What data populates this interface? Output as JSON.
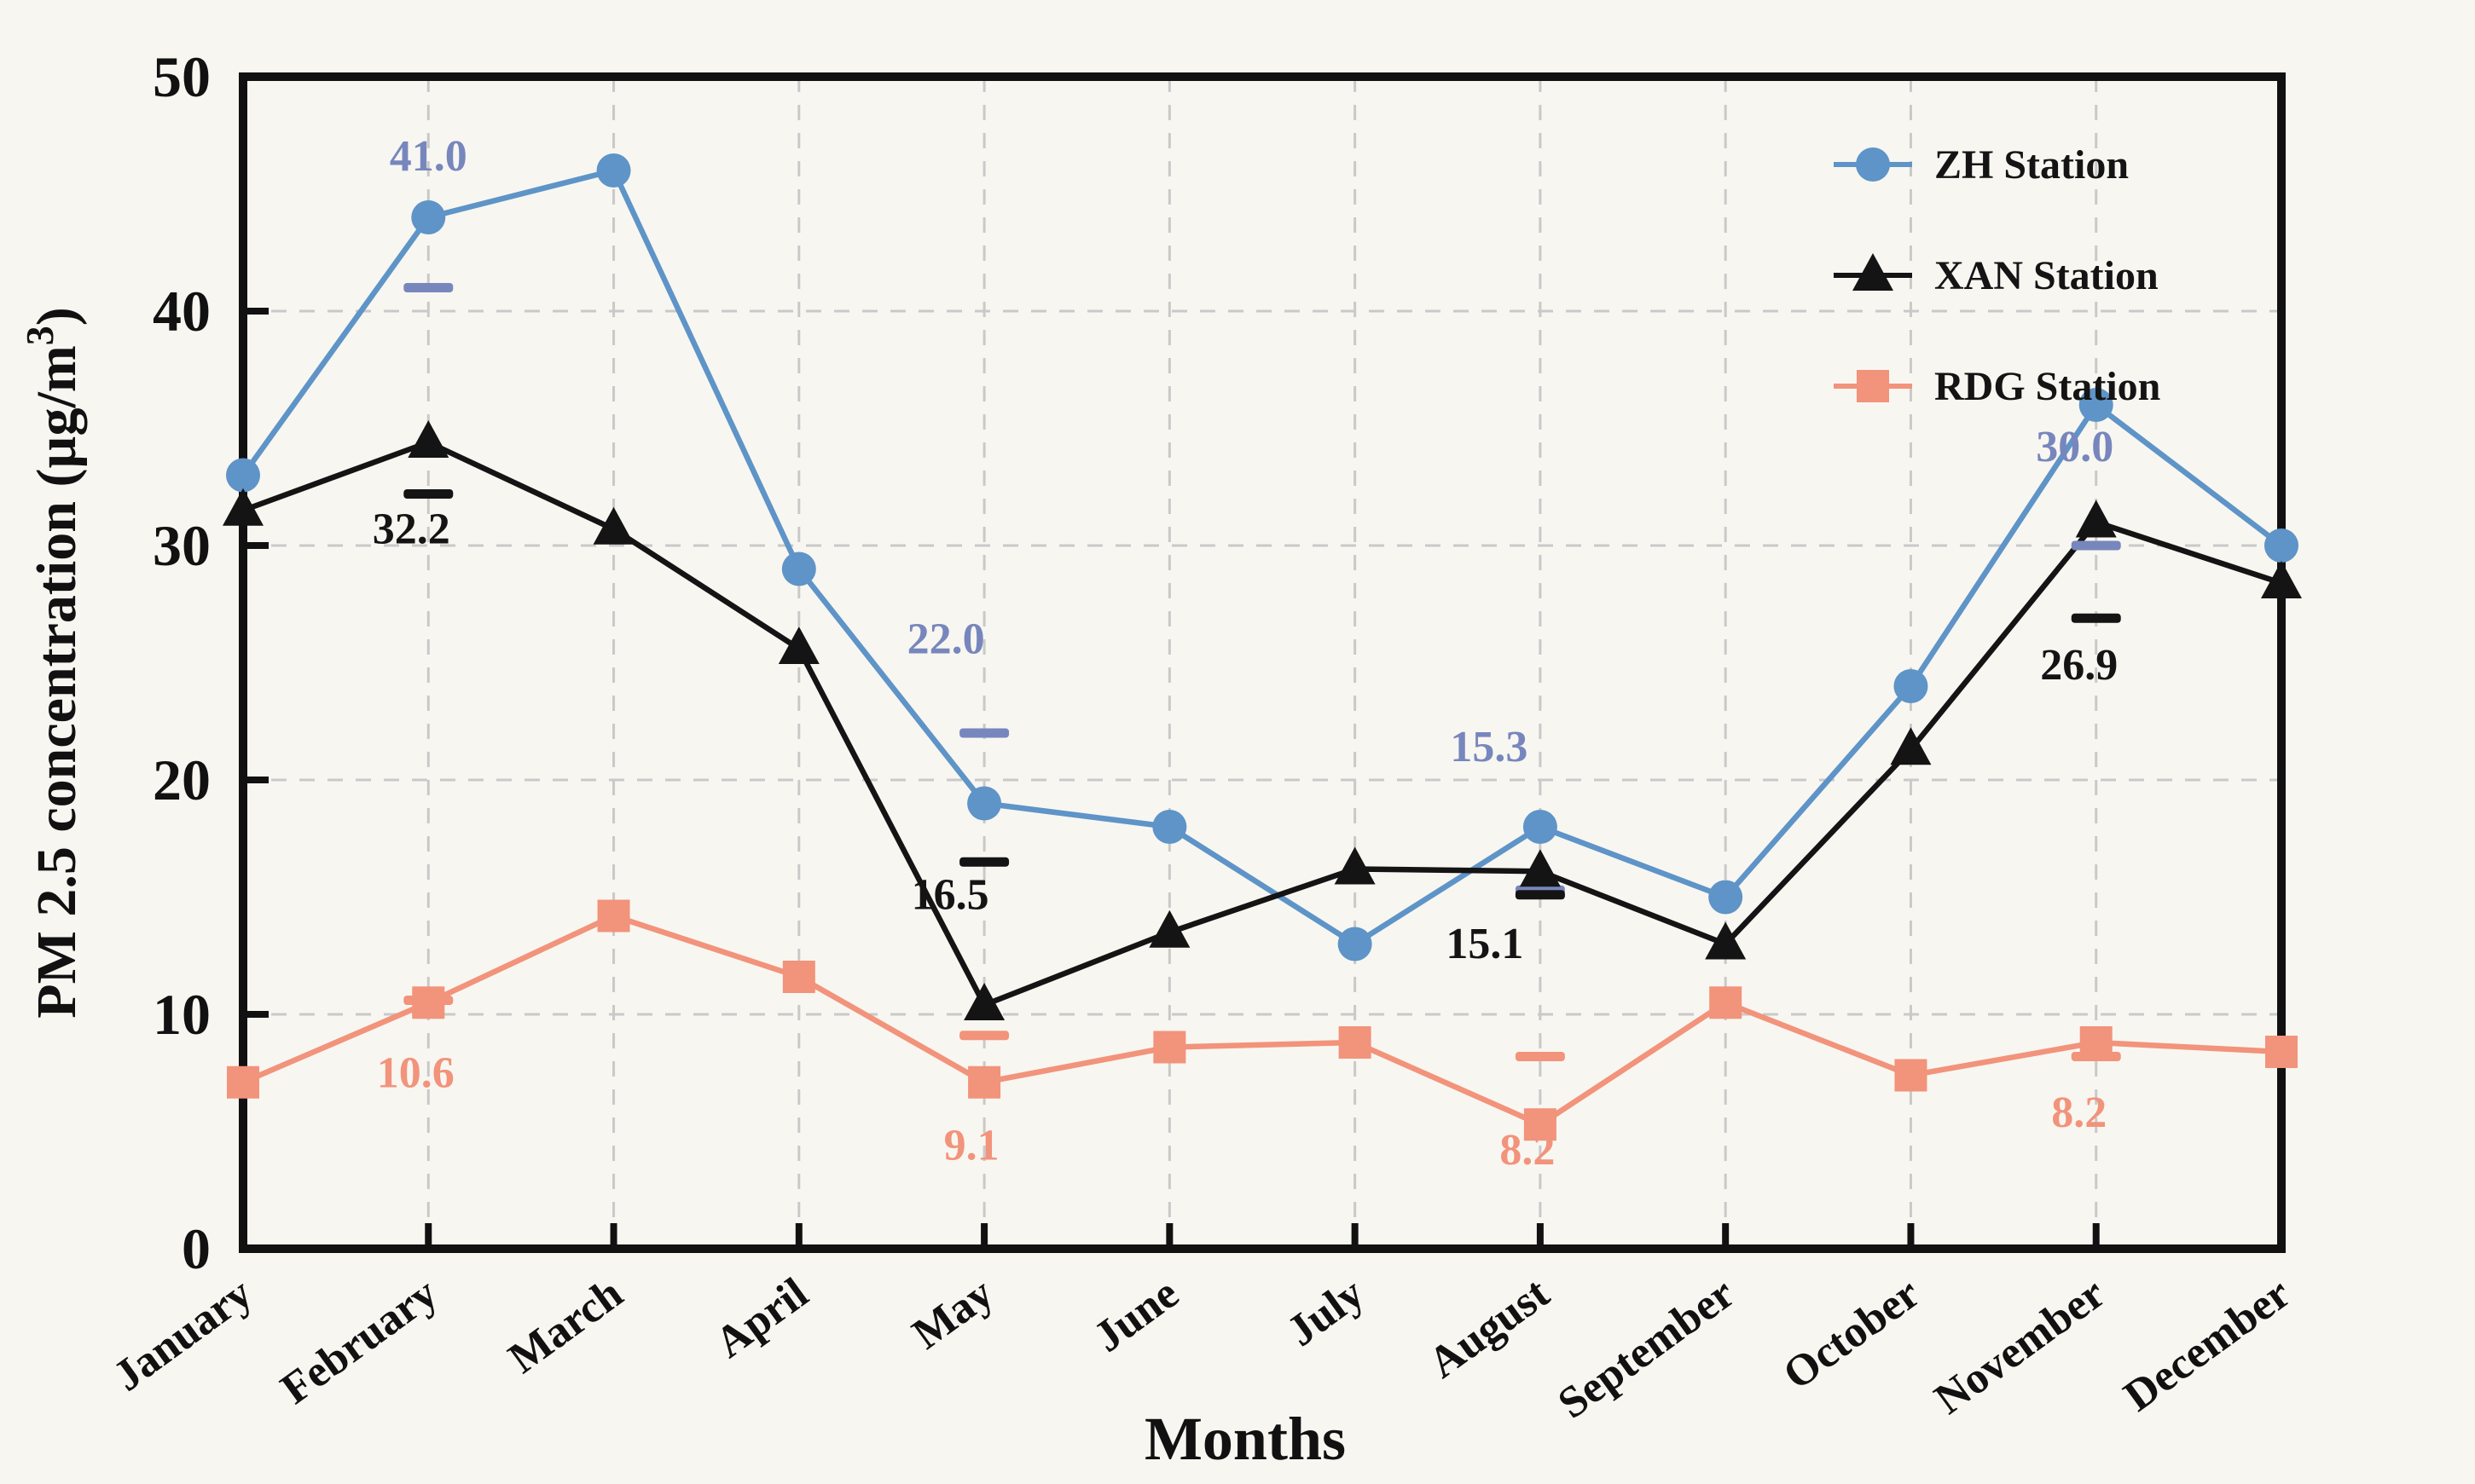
{
  "figure": {
    "background": "#F8F6F1",
    "frame_color": "#111111",
    "grid_color": "#C9C9C9",
    "tick_color": "#111111"
  },
  "titles": {
    "y_axis_prefix": "PM 2.5 concentration (µg/m",
    "y_axis_superscript": "3",
    "y_axis_suffix": ")",
    "x_axis": "Months"
  },
  "legend": {
    "items": [
      {
        "label": "ZH Station",
        "marker": "circle",
        "color": "#5E94C7"
      },
      {
        "label": "XAN Station",
        "marker": "triangle",
        "color": "#141414"
      },
      {
        "label": "RDG Station",
        "marker": "square",
        "color": "#F2937B"
      }
    ]
  },
  "chart_data": {
    "type": "line",
    "categories": [
      "January",
      "February",
      "March",
      "April",
      "May",
      "June",
      "July",
      "August",
      "September",
      "October",
      "November",
      "December"
    ],
    "y_ticks": [
      "0",
      "10",
      "20",
      "30",
      "40",
      "50"
    ],
    "ylim": [
      0,
      50
    ],
    "grid": true,
    "legend_position": "top-right",
    "series": [
      {
        "name": "ZH Station",
        "color": "#5E94C7",
        "marker": "circle",
        "values": [
          33.0,
          44.0,
          46.0,
          29.0,
          19.0,
          18.0,
          13.0,
          18.0,
          15.0,
          24.0,
          36.0,
          30.0
        ]
      },
      {
        "name": "XAN Station",
        "color": "#141414",
        "marker": "triangle",
        "values": [
          31.5,
          34.4,
          30.7,
          25.6,
          10.4,
          13.5,
          16.2,
          16.1,
          13.0,
          21.3,
          31.0,
          28.4
        ]
      },
      {
        "name": "RDG Station",
        "color": "#F2937B",
        "marker": "square",
        "values": [
          7.1,
          10.5,
          14.2,
          11.6,
          7.1,
          8.6,
          8.8,
          5.3,
          10.5,
          7.4,
          8.8,
          8.4
        ]
      }
    ],
    "annotations": [
      {
        "series": "ZH Station",
        "month": "February",
        "value": 41.0,
        "label": "41.0",
        "color": "#7787BD",
        "side": "above"
      },
      {
        "series": "XAN Station",
        "month": "February",
        "value": 32.2,
        "label": "32.2",
        "color": "#141414",
        "side": "below"
      },
      {
        "series": "RDG Station",
        "month": "February",
        "value": 10.6,
        "label": "10.6",
        "color": "#F2937B",
        "side": "below"
      },
      {
        "series": "ZH Station",
        "month": "May",
        "value": 22.0,
        "label": "22.0",
        "color": "#7787BD",
        "side": "above"
      },
      {
        "series": "XAN Station",
        "month": "May",
        "value": 16.5,
        "label": "16.5",
        "color": "#141414",
        "side": "below"
      },
      {
        "series": "RDG Station",
        "month": "May",
        "value": 9.1,
        "label": "9.1",
        "color": "#F2937B",
        "side": "below"
      },
      {
        "series": "ZH Station",
        "month": "August",
        "value": 15.3,
        "label": "15.3",
        "color": "#7787BD",
        "side": "above"
      },
      {
        "series": "XAN Station",
        "month": "August",
        "value": 15.1,
        "label": "15.1",
        "color": "#141414",
        "side": "below"
      },
      {
        "series": "RDG Station",
        "month": "August",
        "value": 8.2,
        "label": "8.2",
        "color": "#F2937B",
        "side": "below"
      },
      {
        "series": "ZH Station",
        "month": "November",
        "value": 30.0,
        "label": "30.0",
        "color": "#7787BD",
        "side": "above"
      },
      {
        "series": "XAN Station",
        "month": "November",
        "value": 26.9,
        "label": "26.9",
        "color": "#141414",
        "side": "below"
      },
      {
        "series": "RDG Station",
        "month": "November",
        "value": 8.2,
        "label": "8.2",
        "color": "#F2937B",
        "side": "below"
      }
    ]
  }
}
